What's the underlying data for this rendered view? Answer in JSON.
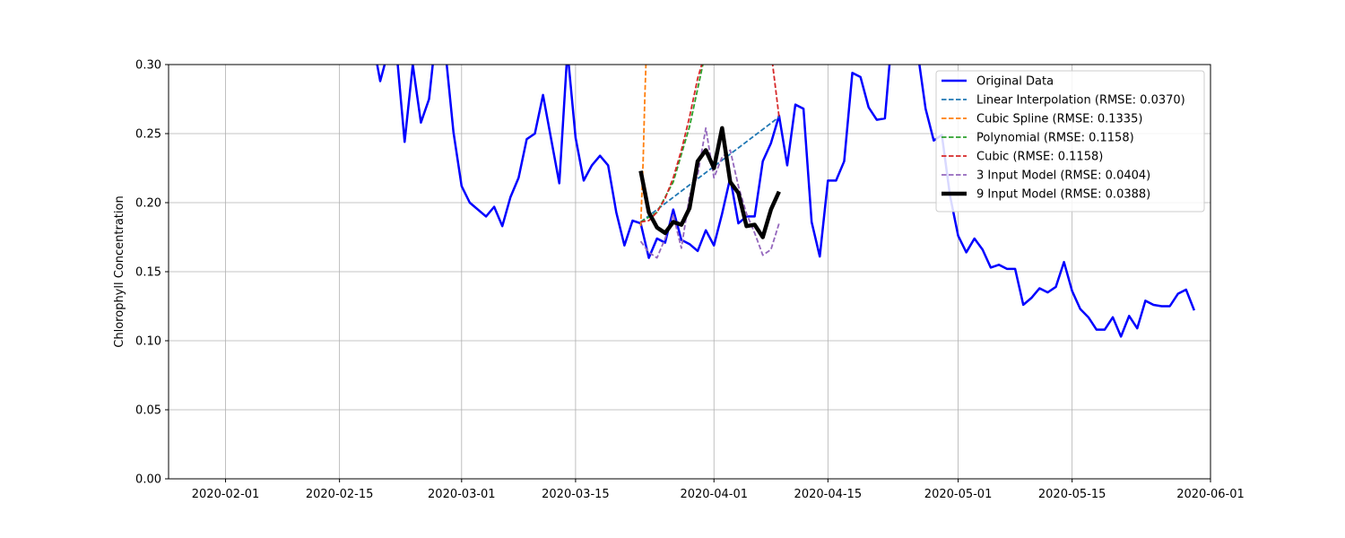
{
  "chart_data": {
    "type": "line",
    "title": "",
    "xlabel": "",
    "ylabel": "Chlorophyll Concentration",
    "xlim": [
      "2020-01-25",
      "2020-06-01"
    ],
    "ylim": [
      0.0,
      0.3
    ],
    "x_ticks": [
      "2020-02-01",
      "2020-02-15",
      "2020-03-01",
      "2020-03-15",
      "2020-04-01",
      "2020-04-15",
      "2020-05-01",
      "2020-05-15",
      "2020-06-01"
    ],
    "y_ticks": [
      0.0,
      0.05,
      0.1,
      0.15,
      0.2,
      0.25,
      0.3
    ],
    "y_tick_labels": [
      "0.00",
      "0.05",
      "0.10",
      "0.15",
      "0.20",
      "0.25",
      "0.30"
    ],
    "grid": true,
    "legend_position": "top-right",
    "series": [
      {
        "name": "Original Data",
        "color": "#0000ff",
        "style": "solid",
        "width": 2.5,
        "points": [
          [
            "2020-02-19",
            0.32
          ],
          [
            "2020-02-20",
            0.288
          ],
          [
            "2020-02-21",
            0.31
          ],
          [
            "2020-02-22",
            0.31
          ],
          [
            "2020-02-23",
            0.244
          ],
          [
            "2020-02-24",
            0.3
          ],
          [
            "2020-02-25",
            0.258
          ],
          [
            "2020-02-26",
            0.275
          ],
          [
            "2020-02-27",
            0.33
          ],
          [
            "2020-02-28",
            0.31
          ],
          [
            "2020-02-29",
            0.251
          ],
          [
            "2020-03-01",
            0.212
          ],
          [
            "2020-03-02",
            0.2
          ],
          [
            "2020-03-04",
            0.19
          ],
          [
            "2020-03-05",
            0.197
          ],
          [
            "2020-03-06",
            0.183
          ],
          [
            "2020-03-07",
            0.204
          ],
          [
            "2020-03-08",
            0.218
          ],
          [
            "2020-03-09",
            0.246
          ],
          [
            "2020-03-10",
            0.25
          ],
          [
            "2020-03-11",
            0.278
          ],
          [
            "2020-03-12",
            0.246
          ],
          [
            "2020-03-13",
            0.214
          ],
          [
            "2020-03-14",
            0.31
          ],
          [
            "2020-03-15",
            0.247
          ],
          [
            "2020-03-16",
            0.216
          ],
          [
            "2020-03-17",
            0.227
          ],
          [
            "2020-03-18",
            0.234
          ],
          [
            "2020-03-19",
            0.227
          ],
          [
            "2020-03-20",
            0.193
          ],
          [
            "2020-03-21",
            0.169
          ],
          [
            "2020-03-22",
            0.187
          ],
          [
            "2020-03-23",
            0.185
          ],
          [
            "2020-03-24",
            0.16
          ],
          [
            "2020-03-25",
            0.174
          ],
          [
            "2020-03-26",
            0.171
          ],
          [
            "2020-03-27",
            0.195
          ],
          [
            "2020-03-28",
            0.173
          ],
          [
            "2020-03-29",
            0.17
          ],
          [
            "2020-03-30",
            0.165
          ],
          [
            "2020-03-31",
            0.18
          ],
          [
            "2020-04-01",
            0.169
          ],
          [
            "2020-04-02",
            0.192
          ],
          [
            "2020-04-03",
            0.218
          ],
          [
            "2020-04-04",
            0.185
          ],
          [
            "2020-04-05",
            0.19
          ],
          [
            "2020-04-06",
            0.19
          ],
          [
            "2020-04-07",
            0.23
          ],
          [
            "2020-04-08",
            0.243
          ],
          [
            "2020-04-09",
            0.263
          ],
          [
            "2020-04-10",
            0.227
          ],
          [
            "2020-04-11",
            0.271
          ],
          [
            "2020-04-12",
            0.268
          ],
          [
            "2020-04-13",
            0.186
          ],
          [
            "2020-04-14",
            0.161
          ],
          [
            "2020-04-15",
            0.216
          ],
          [
            "2020-04-16",
            0.216
          ],
          [
            "2020-04-17",
            0.23
          ],
          [
            "2020-04-18",
            0.294
          ],
          [
            "2020-04-19",
            0.291
          ],
          [
            "2020-04-20",
            0.269
          ],
          [
            "2020-04-21",
            0.26
          ],
          [
            "2020-04-22",
            0.261
          ],
          [
            "2020-04-23",
            0.33
          ],
          [
            "2020-04-24",
            0.33
          ],
          [
            "2020-04-25",
            0.31
          ],
          [
            "2020-04-26",
            0.31
          ],
          [
            "2020-04-27",
            0.268
          ],
          [
            "2020-04-28",
            0.245
          ],
          [
            "2020-04-29",
            0.249
          ],
          [
            "2020-04-30",
            0.205
          ],
          [
            "2020-05-01",
            0.176
          ],
          [
            "2020-05-02",
            0.164
          ],
          [
            "2020-05-03",
            0.174
          ],
          [
            "2020-05-04",
            0.166
          ],
          [
            "2020-05-05",
            0.153
          ],
          [
            "2020-05-06",
            0.155
          ],
          [
            "2020-05-07",
            0.152
          ],
          [
            "2020-05-08",
            0.152
          ],
          [
            "2020-05-09",
            0.126
          ],
          [
            "2020-05-10",
            0.131
          ],
          [
            "2020-05-11",
            0.138
          ],
          [
            "2020-05-12",
            0.135
          ],
          [
            "2020-05-13",
            0.139
          ],
          [
            "2020-05-14",
            0.157
          ],
          [
            "2020-05-15",
            0.136
          ],
          [
            "2020-05-16",
            0.123
          ],
          [
            "2020-05-17",
            0.117
          ],
          [
            "2020-05-18",
            0.108
          ],
          [
            "2020-05-19",
            0.108
          ],
          [
            "2020-05-20",
            0.117
          ],
          [
            "2020-05-21",
            0.103
          ],
          [
            "2020-05-22",
            0.118
          ],
          [
            "2020-05-23",
            0.109
          ],
          [
            "2020-05-24",
            0.129
          ],
          [
            "2020-05-25",
            0.126
          ],
          [
            "2020-05-26",
            0.125
          ],
          [
            "2020-05-27",
            0.125
          ],
          [
            "2020-05-28",
            0.134
          ],
          [
            "2020-05-29",
            0.137
          ],
          [
            "2020-05-30",
            0.122
          ]
        ]
      },
      {
        "name": "Linear Interpolation (RMSE: 0.0370)",
        "color": "#1f77b4",
        "style": "dashed",
        "width": 1.8,
        "points": [
          [
            "2020-03-23",
            0.186
          ],
          [
            "2020-04-09",
            0.262
          ]
        ]
      },
      {
        "name": "Cubic Spline (RMSE: 0.1335)",
        "color": "#ff7f0e",
        "style": "dashed",
        "width": 1.8,
        "points": [
          [
            "2020-03-23",
            0.183
          ],
          [
            "2020-03-23.3",
            0.23
          ],
          [
            "2020-03-23.5",
            0.275
          ],
          [
            "2020-03-23.7",
            0.31
          ]
        ]
      },
      {
        "name": "Polynomial (RMSE: 0.1158)",
        "color": "#2ca02c",
        "style": "dashed",
        "width": 1.8,
        "points": [
          [
            "2020-03-23",
            0.186
          ],
          [
            "2020-03-25",
            0.193
          ],
          [
            "2020-03-27",
            0.215
          ],
          [
            "2020-03-29",
            0.255
          ],
          [
            "2020-03-31",
            0.31
          ]
        ]
      },
      {
        "name": "Cubic (RMSE: 0.1158)",
        "color": "#d62728",
        "style": "dashed",
        "width": 1.8,
        "points": [
          [
            "2020-03-23",
            0.186
          ],
          [
            "2020-03-24",
            0.187
          ],
          [
            "2020-03-25",
            0.193
          ],
          [
            "2020-03-26",
            0.203
          ],
          [
            "2020-03-27",
            0.218
          ],
          [
            "2020-03-28",
            0.238
          ],
          [
            "2020-03-29",
            0.262
          ],
          [
            "2020-03-30",
            0.29
          ],
          [
            "2020-03-31",
            0.31
          ],
          [
            "2020-04-08",
            0.31
          ],
          [
            "2020-04-09",
            0.262
          ]
        ]
      },
      {
        "name": "3 Input Model (RMSE: 0.0404)",
        "color": "#9467bd",
        "style": "dashed",
        "width": 1.8,
        "points": [
          [
            "2020-03-23",
            0.172
          ],
          [
            "2020-03-24",
            0.164
          ],
          [
            "2020-03-25",
            0.16
          ],
          [
            "2020-03-26",
            0.174
          ],
          [
            "2020-03-27",
            0.191
          ],
          [
            "2020-03-28",
            0.167
          ],
          [
            "2020-03-29",
            0.205
          ],
          [
            "2020-03-30",
            0.22
          ],
          [
            "2020-03-31",
            0.254
          ],
          [
            "2020-04-01",
            0.218
          ],
          [
            "2020-04-02",
            0.233
          ],
          [
            "2020-04-03",
            0.238
          ],
          [
            "2020-04-04",
            0.212
          ],
          [
            "2020-04-05",
            0.192
          ],
          [
            "2020-04-06",
            0.178
          ],
          [
            "2020-04-07",
            0.162
          ],
          [
            "2020-04-08",
            0.166
          ],
          [
            "2020-04-09",
            0.185
          ]
        ]
      },
      {
        "name": "9 Input Model (RMSE: 0.0388)",
        "color": "#000000",
        "style": "solid",
        "width": 4.5,
        "points": [
          [
            "2020-03-23",
            0.223
          ],
          [
            "2020-03-24",
            0.193
          ],
          [
            "2020-03-25",
            0.182
          ],
          [
            "2020-03-26",
            0.178
          ],
          [
            "2020-03-27",
            0.186
          ],
          [
            "2020-03-28",
            0.184
          ],
          [
            "2020-03-29",
            0.196
          ],
          [
            "2020-03-30",
            0.23
          ],
          [
            "2020-03-31",
            0.238
          ],
          [
            "2020-04-01",
            0.225
          ],
          [
            "2020-04-02",
            0.254
          ],
          [
            "2020-04-03",
            0.215
          ],
          [
            "2020-04-04",
            0.207
          ],
          [
            "2020-04-05",
            0.183
          ],
          [
            "2020-04-06",
            0.184
          ],
          [
            "2020-04-07",
            0.175
          ],
          [
            "2020-04-08",
            0.195
          ],
          [
            "2020-04-09",
            0.208
          ]
        ]
      }
    ]
  }
}
